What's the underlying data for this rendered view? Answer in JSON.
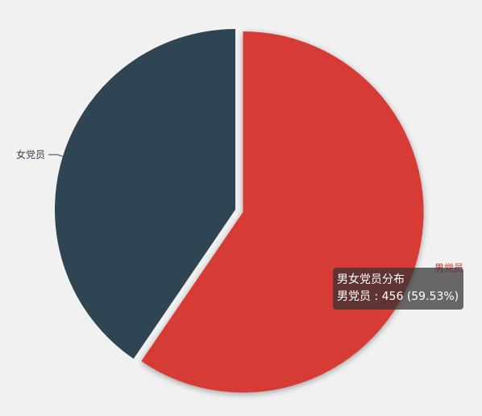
{
  "chart_data": {
    "type": "pie",
    "title": "",
    "series": [
      {
        "name": "男女党员分布",
        "slices": [
          {
            "label": "男党员",
            "value": 456,
            "percent": 59.53,
            "color": "#d73a34"
          },
          {
            "label": "女党员",
            "value": 310,
            "percent": 40.47,
            "color": "#2f4554"
          }
        ]
      }
    ],
    "legend": "none",
    "highlighted_slice": "男党员"
  },
  "tooltip": {
    "title": "男女党员分布",
    "series_label": "男党员",
    "separator": " : ",
    "value": "456",
    "percent": "(59.53%)"
  },
  "colors": {
    "background": "#f1f1f1",
    "tooltip_bg": "#323232"
  }
}
